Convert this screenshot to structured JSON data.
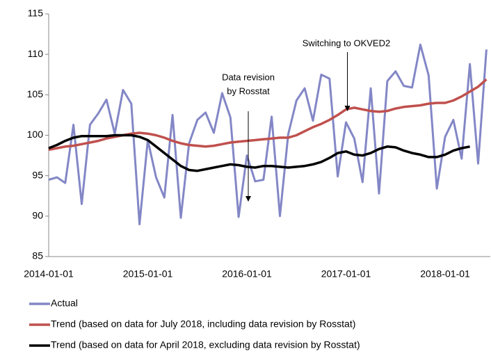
{
  "chart_data": {
    "type": "line",
    "x": [
      "2014-01-01",
      "2014-02-01",
      "2014-03-01",
      "2014-04-01",
      "2014-05-01",
      "2014-06-01",
      "2014-07-01",
      "2014-08-01",
      "2014-09-01",
      "2014-10-01",
      "2014-11-01",
      "2014-12-01",
      "2015-01-01",
      "2015-02-01",
      "2015-03-01",
      "2015-04-01",
      "2015-05-01",
      "2015-06-01",
      "2015-07-01",
      "2015-08-01",
      "2015-09-01",
      "2015-10-01",
      "2015-11-01",
      "2015-12-01",
      "2016-01-01",
      "2016-02-01",
      "2016-03-01",
      "2016-04-01",
      "2016-05-01",
      "2016-06-01",
      "2016-07-01",
      "2016-08-01",
      "2016-09-01",
      "2016-10-01",
      "2016-11-01",
      "2016-12-01",
      "2017-01-01",
      "2017-02-01",
      "2017-03-01",
      "2017-04-01",
      "2017-05-01",
      "2017-06-01",
      "2017-07-01",
      "2017-08-01",
      "2017-09-01",
      "2017-10-01",
      "2017-11-01",
      "2017-12-01",
      "2018-01-01",
      "2018-02-01",
      "2018-03-01",
      "2018-04-01",
      "2018-05-01",
      "2018-06-01"
    ],
    "series": [
      {
        "name": "Actual",
        "color": "#8387c6",
        "values": [
          94.5,
          94.8,
          94.1,
          101.3,
          91.5,
          101.3,
          102.7,
          104.4,
          100.2,
          105.6,
          103.9,
          89.0,
          99.4,
          94.8,
          92.3,
          102.5,
          89.8,
          99.0,
          101.9,
          102.8,
          100.3,
          105.2,
          102.2,
          89.9,
          97.5,
          94.3,
          94.5,
          102.3,
          90.0,
          100.1,
          104.3,
          105.8,
          101.8,
          107.5,
          107.0,
          94.9,
          101.6,
          99.6,
          94.2,
          105.8,
          92.8,
          106.7,
          107.9,
          106.1,
          105.9,
          111.2,
          107.4,
          93.4,
          99.8,
          101.9,
          97.1,
          108.8,
          96.5,
          110.6
        ]
      },
      {
        "name": "Trend (based on data for July 2018, including data revision by Rosstat)",
        "color": "#c0504d",
        "values": [
          98.2,
          98.4,
          98.6,
          98.7,
          98.9,
          99.1,
          99.3,
          99.6,
          99.8,
          100.0,
          100.2,
          100.3,
          100.2,
          100.0,
          99.7,
          99.3,
          99.0,
          98.8,
          98.7,
          98.6,
          98.7,
          98.9,
          99.1,
          99.2,
          99.3,
          99.4,
          99.5,
          99.6,
          99.7,
          99.7,
          100.0,
          100.5,
          101.0,
          101.4,
          101.9,
          102.5,
          103.2,
          103.4,
          103.2,
          103.0,
          102.9,
          103.0,
          103.3,
          103.5,
          103.6,
          103.7,
          103.9,
          104.0,
          104.0,
          104.3,
          104.8,
          105.4,
          106.0,
          106.9
        ]
      },
      {
        "name": "Trend (based on data for April 2018,  excluding data revision by Rosstat)",
        "color": "#000000",
        "values": [
          98.4,
          98.8,
          99.3,
          99.7,
          99.9,
          99.9,
          99.9,
          99.9,
          100.0,
          100.0,
          100.0,
          99.8,
          99.4,
          98.6,
          97.8,
          97.0,
          96.2,
          95.7,
          95.6,
          95.8,
          96.0,
          96.2,
          96.4,
          96.3,
          96.1,
          96.0,
          96.2,
          96.2,
          96.1,
          96.0,
          96.1,
          96.2,
          96.4,
          96.7,
          97.2,
          97.8,
          98.0,
          97.6,
          97.5,
          97.8,
          98.3,
          98.6,
          98.5,
          98.1,
          97.8,
          97.6,
          97.3,
          97.3,
          97.6,
          98.1,
          98.4,
          98.6,
          null,
          null
        ]
      }
    ],
    "ylim": [
      85,
      115
    ],
    "yticks": [
      85,
      90,
      95,
      100,
      105,
      110,
      115
    ],
    "xticks": [
      "2014-01-01",
      "2015-01-01",
      "2016-01-01",
      "2017-01-01",
      "2018-01-01"
    ],
    "annotations": [
      {
        "lines": [
          "Data revision",
          "by Rosstat"
        ],
        "x": "2016-01-01"
      },
      {
        "lines": [
          "Switching to OKVED2"
        ],
        "x": "2017-01-01"
      }
    ],
    "legend": "bottom"
  }
}
